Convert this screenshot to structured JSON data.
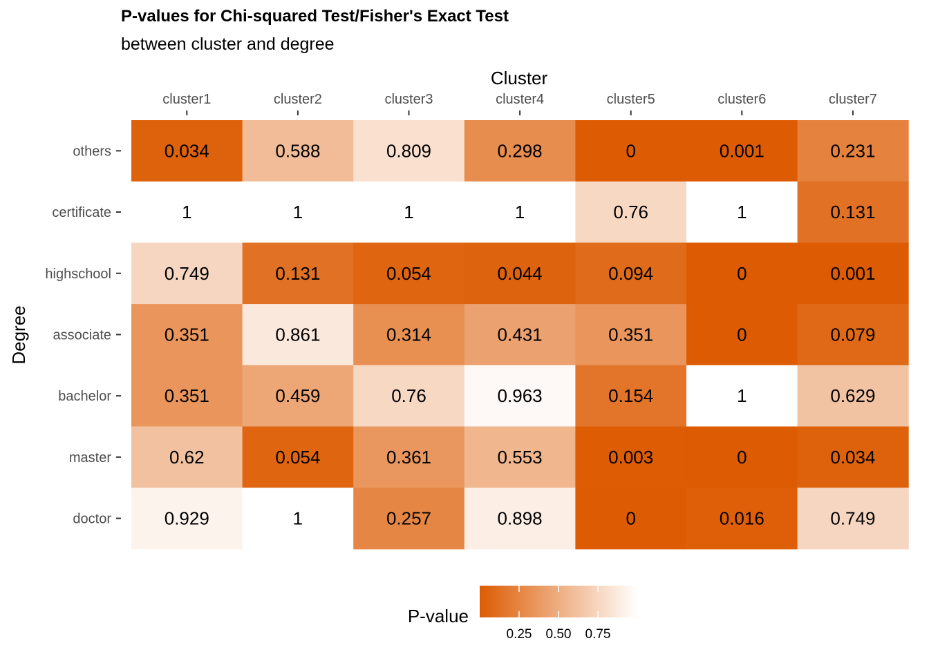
{
  "chart_data": {
    "type": "heatmap",
    "title": "P-values for Chi-squared Test/Fisher's Exact Test",
    "subtitle": "between cluster and degree",
    "xlabel": "Cluster",
    "ylabel": "Degree",
    "x_categories": [
      "cluster1",
      "cluster2",
      "cluster3",
      "cluster4",
      "cluster5",
      "cluster6",
      "cluster7"
    ],
    "y_categories": [
      "others",
      "certificate",
      "highschool",
      "associate",
      "bachelor",
      "master",
      "doctor"
    ],
    "values": [
      [
        "0.034",
        "0.588",
        "0.809",
        "0.298",
        "0",
        "0.001",
        "0.231"
      ],
      [
        "1",
        "1",
        "1",
        "1",
        "0.76",
        "1",
        "0.131"
      ],
      [
        "0.749",
        "0.131",
        "0.054",
        "0.044",
        "0.094",
        "0",
        "0.001"
      ],
      [
        "0.351",
        "0.861",
        "0.314",
        "0.431",
        "0.351",
        "0",
        "0.079"
      ],
      [
        "0.351",
        "0.459",
        "0.76",
        "0.963",
        "0.154",
        "1",
        "0.629"
      ],
      [
        "0.62",
        "0.054",
        "0.361",
        "0.553",
        "0.003",
        "0",
        "0.034"
      ],
      [
        "0.929",
        "1",
        "0.257",
        "0.898",
        "0",
        "0.016",
        "0.749"
      ]
    ],
    "legend": {
      "title": "P-value",
      "position": "bottom",
      "ticks": [
        "0.25",
        "0.50",
        "0.75"
      ],
      "range": [
        0,
        1
      ]
    },
    "colors": {
      "low": "#dd5c03",
      "high": "#ffffff"
    },
    "x_axis_position": "top",
    "grid": false
  }
}
